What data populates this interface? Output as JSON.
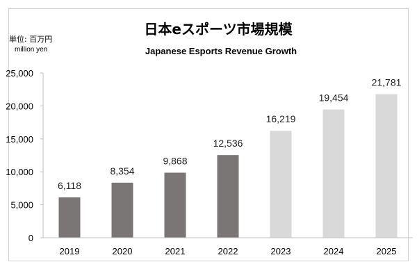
{
  "chart_data": {
    "type": "bar",
    "title": "日本eスポーツ市場規模",
    "subtitle": "Japanese Esports Revenue Growth",
    "unit_label": "単位: 百万円",
    "unit_label_en": "million yen",
    "categories": [
      "2019",
      "2020",
      "2021",
      "2022",
      "2023",
      "2024",
      "2025"
    ],
    "values": [
      6118,
      8354,
      9868,
      12536,
      16219,
      19454,
      21781
    ],
    "value_labels": [
      "6,118",
      "8,354",
      "9,868",
      "12,536",
      "16,219",
      "19,454",
      "21,781"
    ],
    "bar_colors": [
      "#7a7676",
      "#7a7676",
      "#7a7676",
      "#7a7676",
      "#d9d9d9",
      "#d9d9d9",
      "#d9d9d9"
    ],
    "ylim": [
      0,
      25000
    ],
    "yticks": [
      0,
      5000,
      10000,
      15000,
      20000,
      25000
    ],
    "ytick_labels": [
      "0",
      "5,000",
      "10,000",
      "15,000",
      "20,000",
      "25,000"
    ],
    "grid": false,
    "legend": "none"
  }
}
